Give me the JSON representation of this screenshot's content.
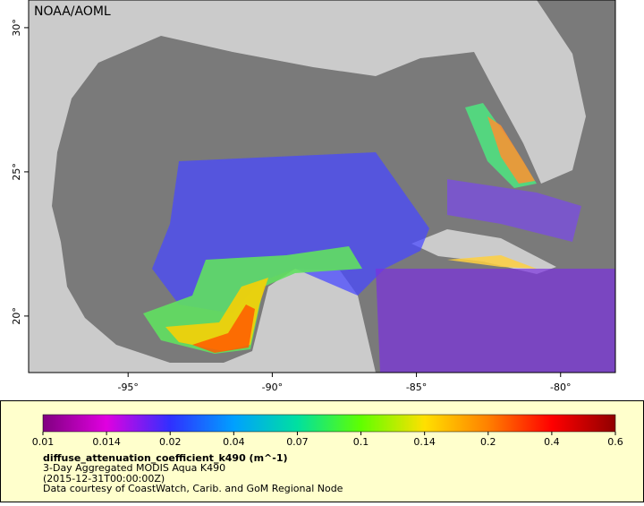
{
  "map": {
    "credit": "NOAA/AOML",
    "xlim": [
      -98.45,
      -78.1
    ],
    "ylim": [
      18.04,
      30.96
    ],
    "xticks": [
      {
        "value": -95,
        "label": "-95°"
      },
      {
        "value": -90,
        "label": "-90°"
      },
      {
        "value": -85,
        "label": "-85°"
      },
      {
        "value": -80,
        "label": "-80°"
      }
    ],
    "yticks": [
      {
        "value": 20,
        "label": "20°"
      },
      {
        "value": 25,
        "label": "25°"
      },
      {
        "value": 30,
        "label": "30°"
      }
    ],
    "colorbar": {
      "ticks": [
        0.01,
        0.014,
        0.02,
        0.04,
        0.07,
        0.1,
        0.14,
        0.2,
        0.4,
        0.6
      ],
      "colors": [
        "#800080",
        "#e000e0",
        "#3030ff",
        "#00a0ff",
        "#00e0a0",
        "#60ff00",
        "#ffe000",
        "#ff8000",
        "#ff0000",
        "#900000"
      ],
      "title": "diffuse_attenuation_coefficient_k490 (m^-1)",
      "subtitle": "3-Day Aggregated MODIS Aqua K490",
      "time": "(2015-12-31T00:00:00Z)",
      "source": "Data courtesy of CoastWatch, Carib. and GoM Regional Node"
    }
  }
}
